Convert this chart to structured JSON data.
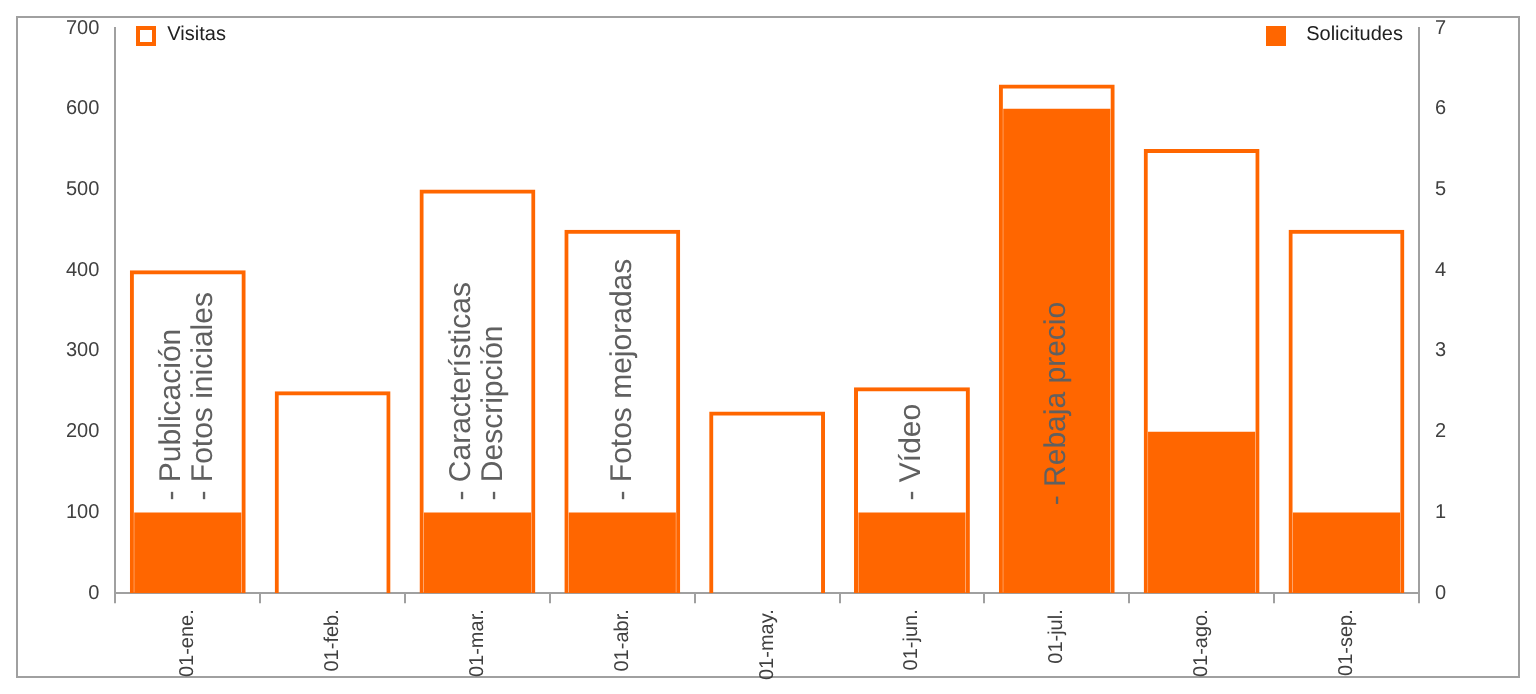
{
  "chart_data": {
    "type": "bar",
    "categories": [
      "01-ene.",
      "01-feb.",
      "01-mar.",
      "01-abr.",
      "01-may.",
      "01-jun.",
      "01-jul.",
      "01-ago.",
      "01-sep."
    ],
    "series": [
      {
        "name": "Visitas",
        "color": "#ff6600",
        "values": [
          400,
          250,
          500,
          450,
          225,
          255,
          630,
          550,
          450
        ]
      },
      {
        "name": "Solicitudes",
        "color": "#ff6600",
        "axis": "y2",
        "values": [
          1,
          0,
          1,
          1,
          0,
          1,
          6,
          2,
          1
        ]
      }
    ],
    "ylim": [
      0,
      700
    ],
    "yticks": [
      0,
      100,
      200,
      300,
      400,
      500,
      600,
      700
    ],
    "y2lim": [
      0,
      7
    ],
    "y2ticks": [
      0,
      1,
      2,
      3,
      4,
      5,
      6,
      7
    ],
    "grid": false,
    "legend": "top",
    "annotations": [
      {
        "text": "- Publicación",
        "x": "01-ene.",
        "y": 100
      },
      {
        "text": "- Fotos iniciales",
        "x": "01-ene.",
        "y": 100
      },
      {
        "text": "- Características",
        "x": "01-mar.",
        "y": 100
      },
      {
        "text": "- Descripción",
        "x": "01-mar.",
        "y": 100
      },
      {
        "text": "- Fotos mejoradas",
        "x": "01-abr.",
        "y": 100
      },
      {
        "text": "- Vídeo",
        "x": "01-jun.",
        "y": 100
      },
      {
        "text": "- Rebaja precio",
        "x": "01-jul.",
        "y": 0
      }
    ]
  }
}
